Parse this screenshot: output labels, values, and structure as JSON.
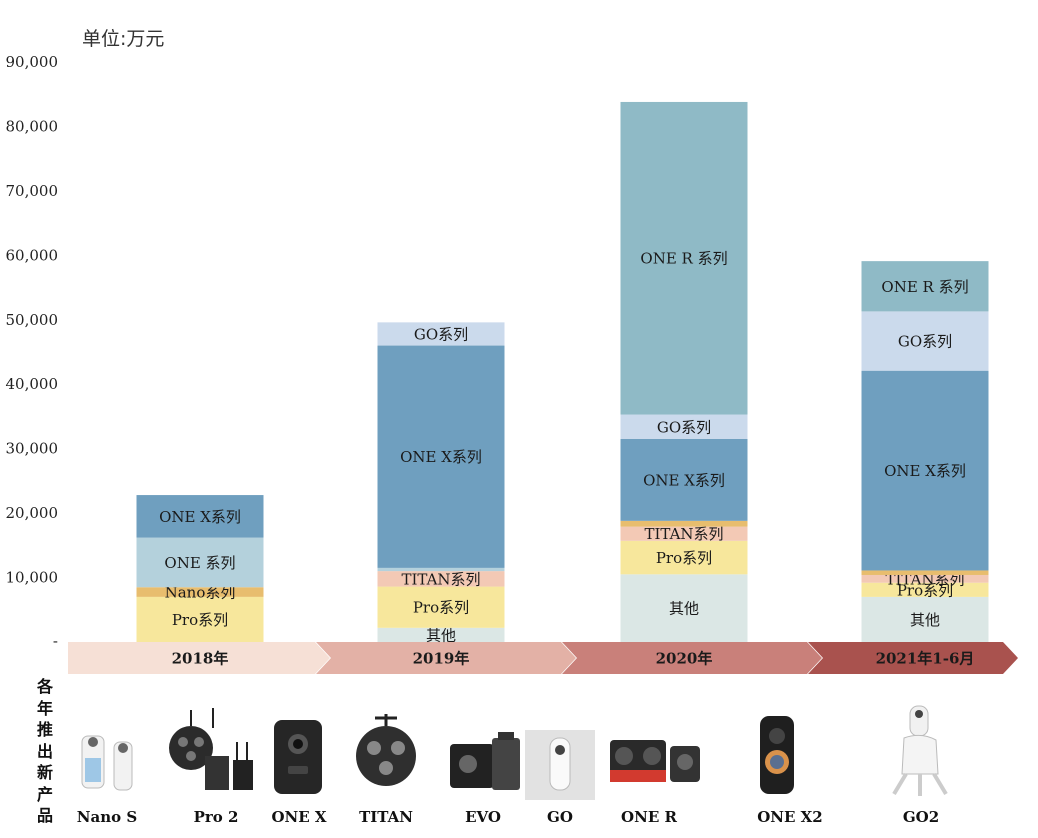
{
  "unit_label": "单位:万元",
  "side_label": "各年推出新产品",
  "chart_data": {
    "type": "bar",
    "stacked": true,
    "ylim": [
      0,
      90000
    ],
    "yticks": [
      0,
      10000,
      20000,
      30000,
      40000,
      50000,
      60000,
      70000,
      80000,
      90000
    ],
    "ytick_labels": [
      "-",
      "10,000",
      "20,000",
      "30,000",
      "40,000",
      "50,000",
      "60,000",
      "70,000",
      "80,000",
      "90,000"
    ],
    "categories": [
      "2018年",
      "2019年",
      "2020年",
      "2021年1-6月"
    ],
    "timeline_colors": [
      "#f6e0d6",
      "#e3b1a6",
      "#c9807a",
      "#a9524e"
    ],
    "segment_colors": {
      "其他": "#dbe7e5",
      "Pro系列": "#f7e79c",
      "Nano系列": "#e8bd6e",
      "TITAN系列": "#f3c9b5",
      "ONE 系列": "#b4d1dc",
      "ONE X系列": "#6f9fbf",
      "GO系列": "#cbdaec",
      "ONE R 系列": "#8fbac6"
    },
    "stacks": [
      {
        "category": "2018年",
        "segments": [
          {
            "name": "Pro系列",
            "label": "Pro系列",
            "value": 7000
          },
          {
            "name": "Nano系列",
            "label": "Nano系列",
            "value": 1500
          },
          {
            "name": "ONE 系列",
            "label": "ONE 系列",
            "value": 7700
          },
          {
            "name": "ONE X系列",
            "label": "ONE X系列",
            "value": 6600
          }
        ]
      },
      {
        "category": "2019年",
        "segments": [
          {
            "name": "其他",
            "label": "其他",
            "value": 2200
          },
          {
            "name": "Pro系列",
            "label": "Pro系列",
            "value": 6400
          },
          {
            "name": "TITAN系列",
            "label": "TITAN系列",
            "value": 2400
          },
          {
            "name": "ONE 系列",
            "label": "",
            "value": 500
          },
          {
            "name": "ONE X系列",
            "label": "ONE X系列",
            "value": 34500
          },
          {
            "name": "GO系列",
            "label": "GO系列",
            "value": 3600
          }
        ]
      },
      {
        "category": "2020年",
        "segments": [
          {
            "name": "其他",
            "label": "其他",
            "value": 10500
          },
          {
            "name": "Pro系列",
            "label": "Pro系列",
            "value": 5200
          },
          {
            "name": "TITAN系列",
            "label": "TITAN系列",
            "value": 2200
          },
          {
            "name": "Nano系列",
            "label": "",
            "value": 900
          },
          {
            "name": "ONE X系列",
            "label": "ONE X系列",
            "value": 12700
          },
          {
            "name": "GO系列",
            "label": "GO系列",
            "value": 3800
          },
          {
            "name": "ONE R 系列",
            "label": "ONE R 系列",
            "value": 48500
          }
        ]
      },
      {
        "category": "2021年1-6月",
        "segments": [
          {
            "name": "其他",
            "label": "其他",
            "value": 7000
          },
          {
            "name": "Pro系列",
            "label": "Pro系列",
            "value": 2200
          },
          {
            "name": "TITAN系列",
            "label": "TITAN系列",
            "value": 1200
          },
          {
            "name": "Nano系列",
            "label": "",
            "value": 700
          },
          {
            "name": "ONE X系列",
            "label": "ONE X系列",
            "value": 31000
          },
          {
            "name": "GO系列",
            "label": "GO系列",
            "value": 9200
          },
          {
            "name": "ONE R 系列",
            "label": "ONE R 系列",
            "value": 7800
          }
        ]
      }
    ]
  },
  "products": [
    {
      "name": "Nano S",
      "icon": "nano-s-camera-icon"
    },
    {
      "name": "Pro 2",
      "icon": "pro2-camera-icon"
    },
    {
      "name": "ONE X",
      "icon": "one-x-camera-icon"
    },
    {
      "name": "TITAN",
      "icon": "titan-camera-icon"
    },
    {
      "name": "EVO",
      "icon": "evo-camera-icon"
    },
    {
      "name": "GO",
      "icon": "go-camera-icon"
    },
    {
      "name": "ONE R",
      "icon": "one-r-camera-icon"
    },
    {
      "name": "ONE X2",
      "icon": "one-x2-camera-icon"
    },
    {
      "name": "GO2",
      "icon": "go2-camera-icon"
    }
  ]
}
